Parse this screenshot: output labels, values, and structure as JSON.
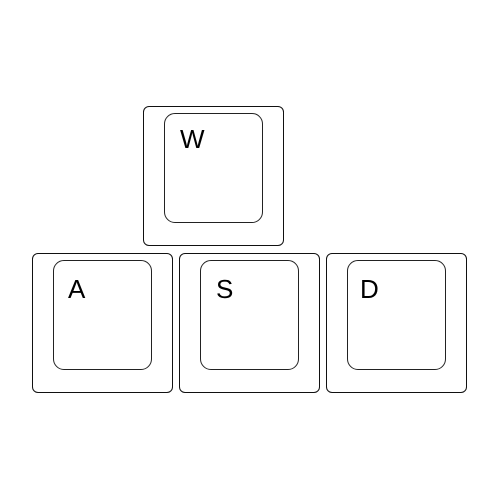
{
  "keys": {
    "w": {
      "label": "W"
    },
    "a": {
      "label": "A"
    },
    "s": {
      "label": "S"
    },
    "d": {
      "label": "D"
    }
  },
  "colors": {
    "background": "#ffffff",
    "outline": "#111111",
    "text": "#000000"
  }
}
